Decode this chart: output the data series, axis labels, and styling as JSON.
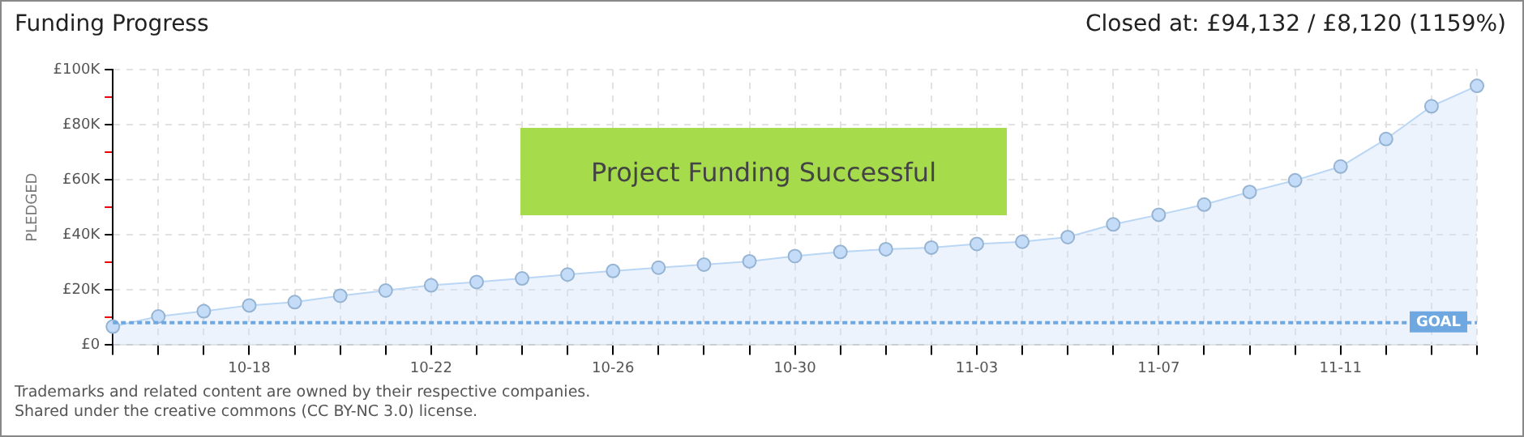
{
  "chart_data": {
    "type": "area",
    "title": "Funding Progress",
    "ylabel": "PLEDGED",
    "annotations": [
      "Closed at: £94,132 / £8,120 (1159%)",
      "Project Funding Successful",
      "Trademarks and related content are owned by their respective companies.",
      "Shared under the creative commons (CC BY-NC 3.0) license."
    ],
    "categories": [
      null,
      null,
      null,
      "10-18",
      null,
      null,
      null,
      "10-22",
      null,
      null,
      null,
      "10-26",
      null,
      null,
      null,
      "10-30",
      null,
      null,
      null,
      "11-03",
      null,
      null,
      null,
      "11-07",
      null,
      null,
      null,
      "11-11",
      null,
      null,
      null
    ],
    "series": [
      {
        "color": "#b9d6f5",
        "values": [
          6700,
          10400,
          12300,
          14400,
          15600,
          17900,
          19800,
          21700,
          22900,
          24200,
          25600,
          26900,
          28100,
          29200,
          30400,
          32300,
          33800,
          34800,
          35400,
          36700,
          37500,
          39200,
          43800,
          47300,
          51000,
          55600,
          59800,
          64800,
          74800,
          86700,
          94100
        ]
      }
    ],
    "ylim": [
      0,
      100000
    ],
    "yticks": [
      {
        "value": 0,
        "label": "£0"
      },
      {
        "value": 10000,
        "label": null
      },
      {
        "value": 20000,
        "label": "£20K"
      },
      {
        "value": 30000,
        "label": null
      },
      {
        "value": 40000,
        "label": "£40K"
      },
      {
        "value": 50000,
        "label": null
      },
      {
        "value": 60000,
        "label": "£60K"
      },
      {
        "value": 70000,
        "label": null
      },
      {
        "value": 80000,
        "label": "£80K"
      },
      {
        "value": 90000,
        "label": null
      },
      {
        "value": 100000,
        "label": "£100K"
      }
    ],
    "grid": true,
    "marker": "circle",
    "ref_lines": [
      {
        "axis": "y",
        "value": 8120,
        "label": "GOAL",
        "color": "#6fa8e0",
        "line_style": "dotted"
      }
    ]
  }
}
